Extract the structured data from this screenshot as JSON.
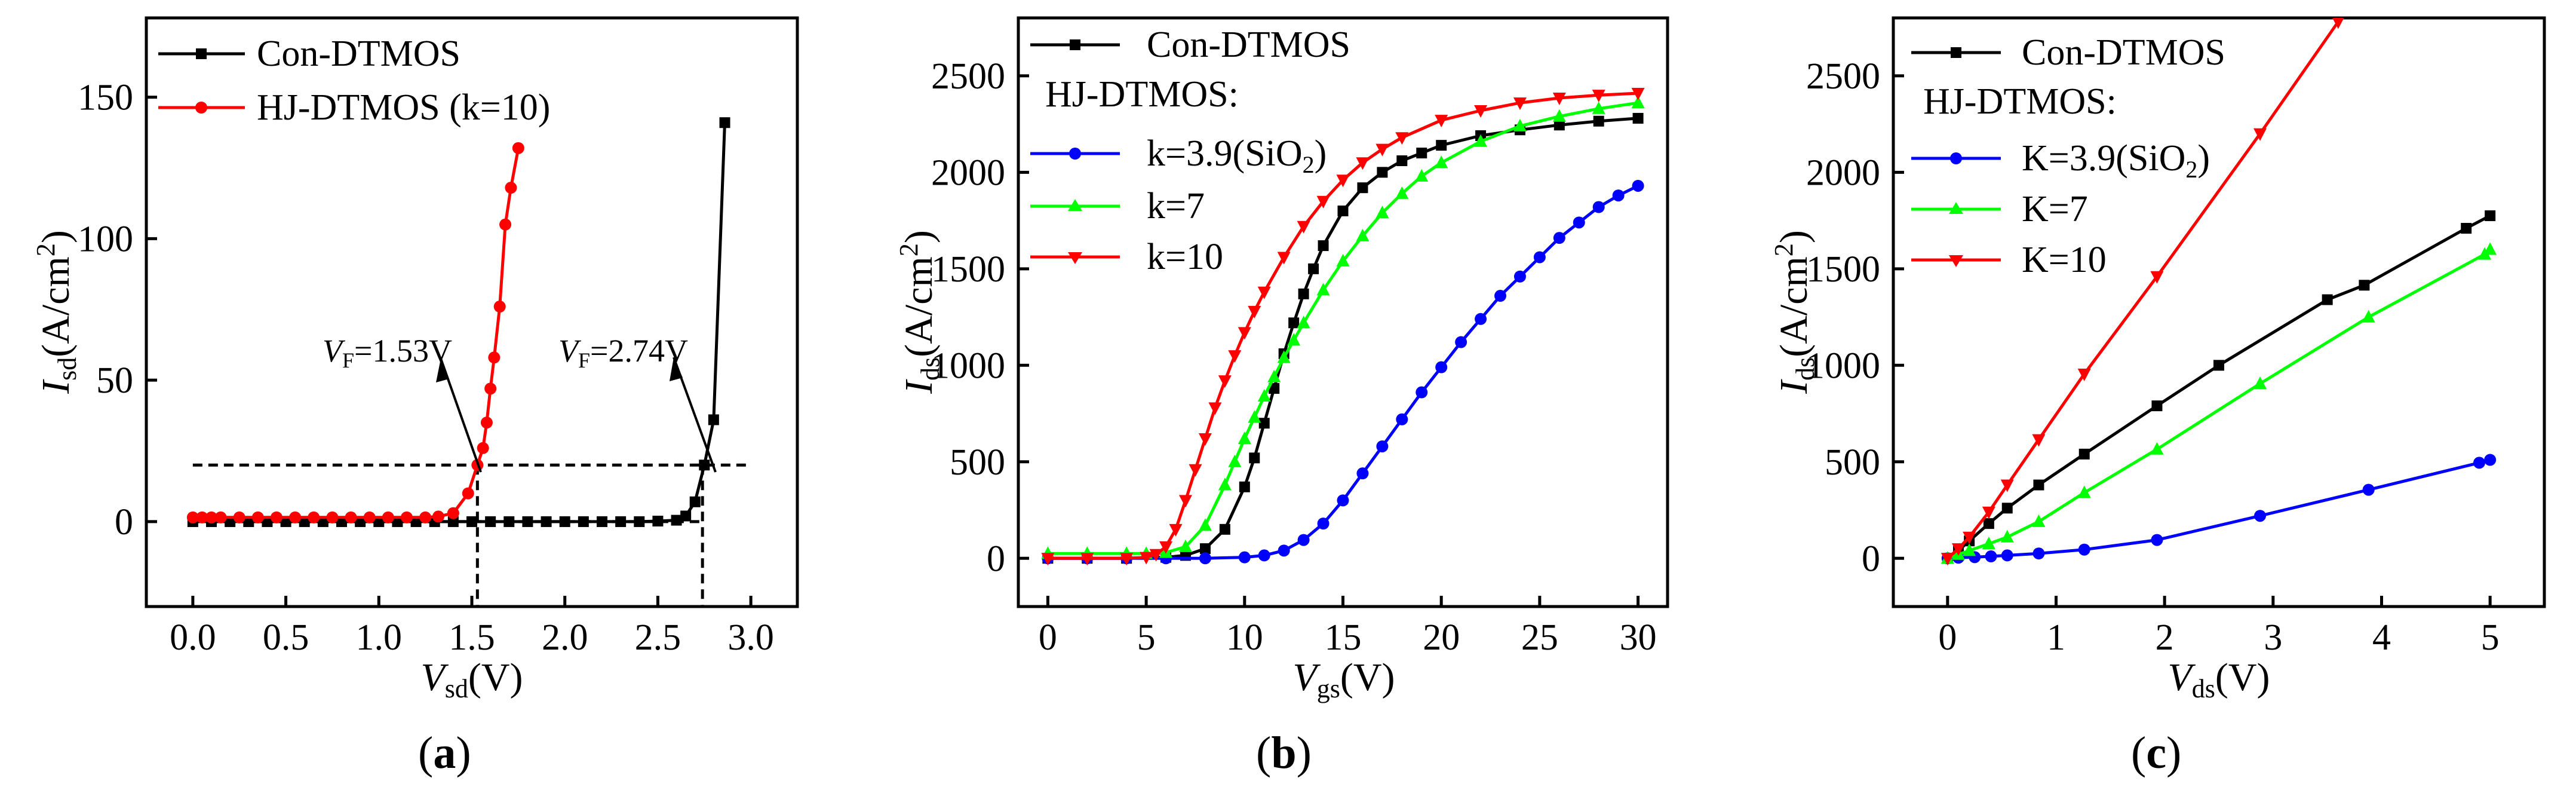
{
  "colors": {
    "con": "#000000",
    "k39": "#0000ff",
    "k7": "#00ff00",
    "k10": "#ff0000"
  },
  "chart_data": [
    {
      "type": "line",
      "panel": "a",
      "panel_label": "(a)",
      "xlabel": {
        "main": "V",
        "sub": "sd",
        "unit": "(V)"
      },
      "ylabel": {
        "main": "I",
        "sub": "sd",
        "unit": "(A/cm",
        "sup": "2",
        "close": ")"
      },
      "xlim": [
        -0.25,
        3.25
      ],
      "ylim": [
        -30,
        178
      ],
      "xticks": [
        0.0,
        0.5,
        1.0,
        1.5,
        2.0,
        2.5,
        3.0
      ],
      "xtick_labels": [
        "0.0",
        "0.5",
        "1.0",
        "1.5",
        "2.0",
        "2.5",
        "3.0"
      ],
      "yticks": [
        0,
        50,
        100,
        150
      ],
      "ytick_labels": [
        "0",
        "50",
        "100",
        "150"
      ],
      "series": [
        {
          "name": "Con-DTMOS",
          "color_key": "con",
          "marker": "square",
          "x": [
            0.0,
            0.1,
            0.2,
            0.3,
            0.4,
            0.5,
            0.6,
            0.7,
            0.8,
            0.9,
            1.0,
            1.1,
            1.2,
            1.3,
            1.4,
            1.5,
            1.6,
            1.7,
            1.8,
            1.9,
            2.0,
            2.1,
            2.2,
            2.3,
            2.4,
            2.5,
            2.6,
            2.65,
            2.7,
            2.75,
            2.8,
            2.86
          ],
          "y": [
            0,
            0,
            0,
            0,
            0,
            0,
            0,
            0,
            0,
            0,
            0,
            0,
            0,
            0,
            0,
            0,
            0,
            0,
            0,
            0,
            0,
            0,
            0,
            0,
            0,
            0.2,
            0.5,
            2,
            7,
            20,
            36,
            141
          ]
        },
        {
          "name": "HJ-DTMOS (k=10)",
          "color_key": "k10",
          "marker": "circle",
          "x": [
            0.0,
            0.05,
            0.1,
            0.15,
            0.25,
            0.35,
            0.45,
            0.55,
            0.65,
            0.75,
            0.85,
            0.95,
            1.05,
            1.15,
            1.25,
            1.32,
            1.4,
            1.48,
            1.53,
            1.56,
            1.58,
            1.6,
            1.62,
            1.65,
            1.68,
            1.71,
            1.75
          ],
          "y": [
            1.5,
            1.5,
            1.5,
            1.5,
            1.5,
            1.5,
            1.5,
            1.5,
            1.5,
            1.5,
            1.5,
            1.5,
            1.5,
            1.5,
            1.5,
            1.8,
            3,
            10,
            20,
            26,
            35,
            47,
            58,
            76,
            105,
            118,
            132
          ]
        }
      ],
      "annotations": [
        {
          "text_main": "V",
          "text_sub": "F",
          "text_rest": "=1.53V"
        },
        {
          "text_main": "V",
          "text_sub": "F",
          "text_rest": "=2.74V"
        }
      ],
      "reference_lines": {
        "y": 20,
        "x": [
          1.53,
          2.74
        ]
      }
    },
    {
      "type": "line",
      "panel": "b",
      "panel_label": "(b)",
      "xlabel": {
        "main": "V",
        "sub": "gs",
        "unit": "(V)"
      },
      "ylabel": {
        "main": "I",
        "sub": "ds",
        "unit": "(A/cm",
        "sup": "2",
        "close": ")"
      },
      "xlim": [
        -1.5,
        31.5
      ],
      "ylim": [
        -250,
        2800
      ],
      "xticks": [
        0,
        5,
        10,
        15,
        20,
        25,
        30
      ],
      "xtick_labels": [
        "0",
        "5",
        "10",
        "15",
        "20",
        "25",
        "30"
      ],
      "yticks": [
        0,
        500,
        1000,
        1500,
        2000,
        2500
      ],
      "ytick_labels": [
        "0",
        "500",
        "1000",
        "1500",
        "2000",
        "2500"
      ],
      "legend_header": "HJ-DTMOS:",
      "series": [
        {
          "name": "Con-DTMOS",
          "color_key": "con",
          "marker": "square",
          "x": [
            0,
            2,
            4,
            6,
            7,
            8,
            9,
            10,
            10.5,
            11,
            11.5,
            12,
            12.5,
            13,
            13.5,
            14,
            15,
            16,
            17,
            18,
            19,
            20,
            22,
            24,
            26,
            28,
            30
          ],
          "y": [
            0,
            0,
            0,
            5,
            15,
            50,
            150,
            370,
            520,
            700,
            880,
            1060,
            1220,
            1370,
            1500,
            1620,
            1800,
            1920,
            2000,
            2060,
            2100,
            2140,
            2190,
            2220,
            2245,
            2265,
            2280
          ]
        },
        {
          "name": "k=3.9(SiO2)",
          "color_key": "k39",
          "marker": "circle",
          "x": [
            0,
            2,
            4,
            6,
            8,
            10,
            11,
            12,
            13,
            14,
            15,
            16,
            17,
            18,
            19,
            20,
            21,
            22,
            23,
            24,
            25,
            26,
            27,
            28,
            29,
            30
          ],
          "y": [
            0,
            0,
            0,
            0,
            0,
            5,
            15,
            40,
            95,
            180,
            300,
            440,
            580,
            720,
            860,
            990,
            1120,
            1240,
            1360,
            1460,
            1560,
            1660,
            1740,
            1820,
            1880,
            1930
          ]
        },
        {
          "name": "k=7",
          "color_key": "k7",
          "marker": "triangle-up",
          "x": [
            0,
            2,
            4,
            5,
            6,
            7,
            8,
            9,
            9.5,
            10,
            10.5,
            11,
            11.5,
            12,
            12.5,
            13,
            14,
            15,
            16,
            17,
            18,
            19,
            20,
            22,
            24,
            26,
            28,
            30
          ],
          "y": [
            25,
            25,
            25,
            25,
            30,
            60,
            170,
            380,
            500,
            620,
            730,
            840,
            940,
            1040,
            1130,
            1220,
            1390,
            1540,
            1670,
            1790,
            1890,
            1980,
            2050,
            2160,
            2240,
            2290,
            2330,
            2360
          ]
        },
        {
          "name": "k=10",
          "color_key": "k10",
          "marker": "triangle-down",
          "x": [
            0,
            2,
            4,
            5,
            5.5,
            6,
            6.5,
            7,
            7.5,
            8,
            8.5,
            9,
            9.5,
            10,
            10.5,
            11,
            12,
            13,
            14,
            15,
            16,
            17,
            18,
            20,
            22,
            24,
            26,
            28,
            30
          ],
          "y": [
            0,
            0,
            0,
            5,
            20,
            60,
            150,
            300,
            460,
            620,
            780,
            920,
            1050,
            1170,
            1280,
            1380,
            1560,
            1720,
            1850,
            1960,
            2050,
            2120,
            2180,
            2270,
            2320,
            2360,
            2385,
            2400,
            2410
          ]
        }
      ]
    },
    {
      "type": "line",
      "panel": "c",
      "panel_label": "(c)",
      "xlabel": {
        "main": "V",
        "sub": "ds",
        "unit": "(V)"
      },
      "ylabel": {
        "main": "I",
        "sub": "ds",
        "unit": "(A/cm",
        "sup": "2",
        "close": ")"
      },
      "xlim": [
        -0.5,
        5.5
      ],
      "ylim": [
        -250,
        2800
      ],
      "xticks": [
        0,
        1,
        2,
        3,
        4,
        5
      ],
      "xtick_labels": [
        "0",
        "1",
        "2",
        "3",
        "4",
        "5"
      ],
      "yticks": [
        0,
        500,
        1000,
        1500,
        2000,
        2500
      ],
      "ytick_labels": [
        "0",
        "500",
        "1000",
        "1500",
        "2000",
        "2500"
      ],
      "legend_header": "HJ-DTMOS:",
      "series": [
        {
          "name": "Con-DTMOS",
          "color_key": "con",
          "marker": "square",
          "x": [
            0,
            0.1,
            0.2,
            0.38,
            0.55,
            0.84,
            1.26,
            1.93,
            2.5,
            3.5,
            3.84,
            4.78,
            5
          ],
          "y": [
            0,
            40,
            90,
            180,
            260,
            380,
            540,
            790,
            1000,
            1340,
            1415,
            1710,
            1775
          ]
        },
        {
          "name": "K=3.9(SiO2)",
          "color_key": "k39",
          "marker": "circle",
          "x": [
            0,
            0.1,
            0.25,
            0.4,
            0.55,
            0.84,
            1.26,
            1.93,
            2.88,
            3.88,
            4.9,
            5
          ],
          "y": [
            0,
            3,
            6,
            10,
            15,
            25,
            45,
            95,
            220,
            355,
            495,
            510
          ]
        },
        {
          "name": "K=7",
          "color_key": "k7",
          "marker": "triangle-up",
          "x": [
            0,
            0.1,
            0.2,
            0.38,
            0.55,
            0.84,
            1.26,
            1.93,
            2.88,
            3.88,
            4.95,
            5
          ],
          "y": [
            0,
            20,
            40,
            75,
            110,
            190,
            340,
            565,
            905,
            1250,
            1575,
            1600
          ]
        },
        {
          "name": "K=10",
          "color_key": "k10",
          "marker": "triangle-down",
          "x": [
            0,
            0.1,
            0.2,
            0.38,
            0.55,
            0.84,
            1.26,
            1.93,
            2.88,
            3.6
          ],
          "y": [
            0,
            50,
            110,
            240,
            380,
            615,
            955,
            1460,
            2200,
            2780
          ]
        }
      ]
    }
  ]
}
